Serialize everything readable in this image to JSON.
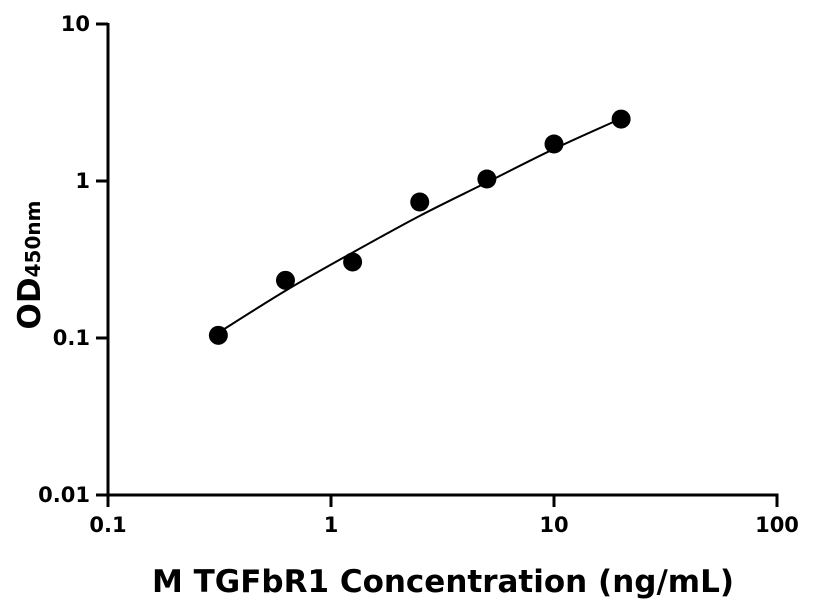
{
  "chart_data": {
    "type": "scatter",
    "title": "",
    "xlabel": "M TGFbR1 Concentration (ng/mL)",
    "ylabel": "OD",
    "ylabel_subscript": "450nm",
    "xscale": "log",
    "yscale": "log",
    "xlim": [
      0.1,
      100
    ],
    "ylim": [
      0.01,
      10
    ],
    "x_ticks": [
      {
        "value": 0.1,
        "label": "0.1"
      },
      {
        "value": 1,
        "label": "1"
      },
      {
        "value": 10,
        "label": "10"
      },
      {
        "value": 100,
        "label": "100"
      }
    ],
    "y_ticks": [
      {
        "value": 0.01,
        "label": "0.01"
      },
      {
        "value": 0.1,
        "label": "0.1"
      },
      {
        "value": 1,
        "label": "1"
      },
      {
        "value": 10,
        "label": "10"
      }
    ],
    "grid": false,
    "legend": "none",
    "colors": {
      "points": "#000000",
      "curve": "#000000",
      "axes": "#000000"
    },
    "series": [
      {
        "x": [
          0.3125,
          0.625,
          1.25,
          2.5,
          5,
          10,
          20
        ],
        "y": [
          0.104,
          0.233,
          0.305,
          0.735,
          1.03,
          1.72,
          2.48
        ]
      }
    ],
    "fit_curve": {
      "type": "smooth fit",
      "x": [
        0.3125,
        0.625,
        1.25,
        2.5,
        5,
        10,
        20
      ],
      "y": [
        0.108,
        0.2,
        0.35,
        0.6,
        0.98,
        1.6,
        2.5
      ]
    }
  }
}
